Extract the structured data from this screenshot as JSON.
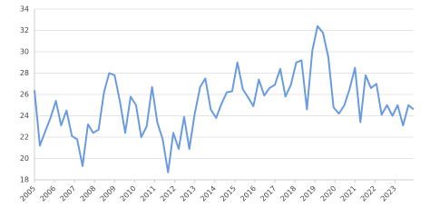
{
  "chart_data": {
    "type": "line",
    "x": [
      2005.0,
      2005.27,
      2005.53,
      2005.8,
      2006.07,
      2006.33,
      2006.6,
      2006.87,
      2007.13,
      2007.4,
      2007.67,
      2007.93,
      2008.2,
      2008.47,
      2008.73,
      2009.0,
      2009.27,
      2009.53,
      2009.8,
      2010.07,
      2010.33,
      2010.6,
      2010.87,
      2011.13,
      2011.4,
      2011.67,
      2011.93,
      2012.2,
      2012.47,
      2012.73,
      2013.0,
      2013.27,
      2013.53,
      2013.8,
      2014.07,
      2014.33,
      2014.6,
      2014.87,
      2015.13,
      2015.4,
      2015.67,
      2015.93,
      2016.2,
      2016.47,
      2016.73,
      2017.0,
      2017.27,
      2017.53,
      2017.8,
      2018.07,
      2018.33,
      2018.6,
      2018.87,
      2019.13,
      2019.4,
      2019.67,
      2019.93,
      2020.2,
      2020.47,
      2020.73,
      2021.0,
      2021.27,
      2021.53,
      2021.8,
      2022.07,
      2022.33,
      2022.6,
      2022.87,
      2023.13,
      2023.4,
      2023.67,
      2023.93
    ],
    "series": [
      {
        "color": "#6a9be0",
        "values": [
          26.4,
          21.2,
          22.5,
          23.8,
          25.4,
          23.1,
          24.5,
          22.1,
          21.8,
          19.3,
          23.2,
          22.4,
          22.7,
          26.2,
          28.0,
          27.8,
          25.3,
          22.4,
          25.8,
          25.0,
          22.0,
          23.0,
          26.7,
          23.4,
          21.8,
          18.7,
          22.4,
          20.9,
          23.9,
          20.9,
          24.2,
          26.7,
          27.5,
          24.6,
          23.8,
          25.1,
          26.2,
          26.3,
          29.0,
          26.5,
          25.7,
          24.9,
          27.4,
          25.9,
          26.6,
          26.9,
          28.4,
          25.8,
          26.9,
          29.0,
          29.2,
          24.6,
          30.1,
          32.4,
          31.8,
          29.5,
          24.8,
          24.2,
          25.0,
          26.5,
          28.5,
          23.4,
          27.8,
          26.6,
          27.0,
          24.1,
          25.0,
          24.0,
          25.0,
          23.1,
          25.0,
          24.6
        ]
      }
    ],
    "xlim": [
      2005,
      2023.93
    ],
    "xticks": [
      2005,
      2006,
      2007,
      2008,
      2009,
      2010,
      2011,
      2012,
      2013,
      2014,
      2015,
      2016,
      2017,
      2018,
      2019,
      2020,
      2021,
      2022,
      2023
    ],
    "ylim": [
      18,
      34
    ],
    "yticks": [
      18,
      20,
      22,
      24,
      26,
      28,
      30,
      32,
      34
    ],
    "grid": true
  }
}
